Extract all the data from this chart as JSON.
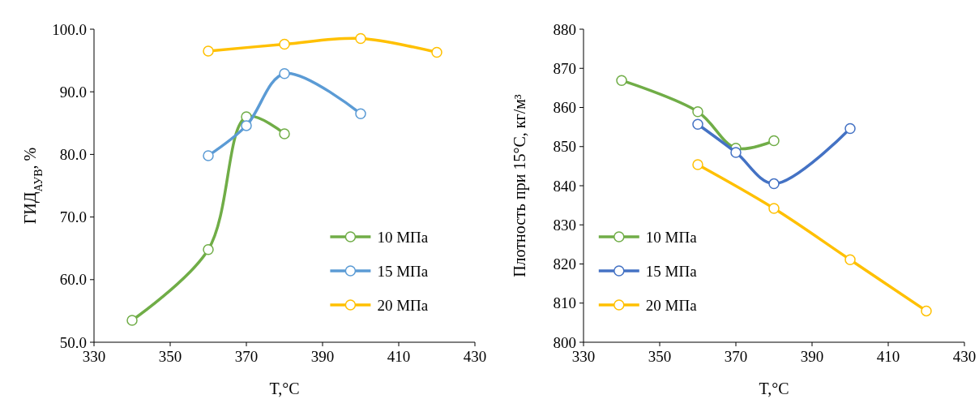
{
  "chart_data": [
    {
      "type": "line",
      "ylabel": "ГИД$_{АУВ}$, %",
      "xlabel": "T,°C",
      "xlim": [
        330,
        430
      ],
      "xticks": [
        330,
        350,
        370,
        390,
        410,
        430
      ],
      "ylim": [
        50,
        100
      ],
      "yticks": [
        {
          "value": 50,
          "label": "50.0"
        },
        {
          "value": 60,
          "label": "60.0"
        },
        {
          "value": 70,
          "label": "70.0"
        },
        {
          "value": 80,
          "label": "80.0"
        },
        {
          "value": 90,
          "label": "90.0"
        },
        {
          "value": 100,
          "label": "100.0"
        }
      ],
      "grid": false,
      "legend": "bottom right",
      "marker": "circle",
      "line_style": "solid",
      "series": [
        {
          "name": "10 МПа",
          "color": "#70ad47",
          "x": [
            340,
            360,
            370,
            380
          ],
          "values": [
            53.5,
            64.8,
            86.0,
            83.3
          ]
        },
        {
          "name": "15 МПа",
          "color": "#5b9bd5",
          "x": [
            360,
            370,
            380,
            400
          ],
          "values": [
            79.8,
            84.6,
            92.9,
            86.5
          ]
        },
        {
          "name": "20 МПа",
          "color": "#ffc000",
          "x": [
            360,
            380,
            400,
            420
          ],
          "values": [
            96.5,
            97.6,
            98.5,
            96.3
          ]
        }
      ]
    },
    {
      "type": "line",
      "ylabel": "Плотность при 15°C, кг/м³",
      "xlabel": "T,°C",
      "xlim": [
        330,
        430
      ],
      "xticks": [
        330,
        350,
        370,
        390,
        410,
        430
      ],
      "ylim": [
        800,
        880
      ],
      "yticks": [
        800,
        810,
        820,
        830,
        840,
        850,
        860,
        870,
        880
      ],
      "grid": false,
      "legend": "bottom left",
      "marker": "circle",
      "line_style": "solid",
      "series": [
        {
          "name": "10 МПа",
          "color": "#70ad47",
          "x": [
            340,
            360,
            370,
            380
          ],
          "values": [
            866.9,
            858.9,
            849.6,
            851.5
          ]
        },
        {
          "name": "15 МПа",
          "color": "#4472c4",
          "x": [
            360,
            370,
            380,
            400
          ],
          "values": [
            855.7,
            848.5,
            840.5,
            854.6
          ]
        },
        {
          "name": "20 МПа",
          "color": "#ffc000",
          "x": [
            360,
            380,
            400,
            420
          ],
          "values": [
            845.4,
            834.2,
            821.1,
            808.0
          ]
        }
      ]
    }
  ]
}
